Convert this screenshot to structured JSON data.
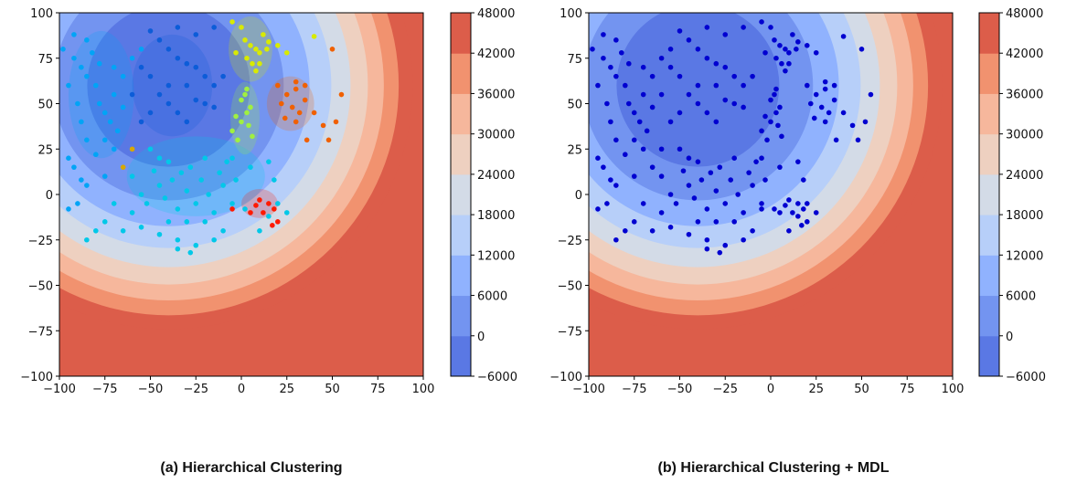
{
  "captions": {
    "a": "(a)  Hierarchical Clustering",
    "b": "(b) Hierarchical Clustering + MDL"
  },
  "chart_data": [
    {
      "type": "scatter",
      "panel": "a",
      "xlim": [
        -100,
        100
      ],
      "ylim": [
        -100,
        100
      ],
      "xticks": [
        -100,
        -75,
        -50,
        -25,
        0,
        25,
        50,
        75,
        100
      ],
      "yticks": [
        -100,
        -75,
        -50,
        -25,
        0,
        25,
        50,
        75,
        100
      ],
      "background": "filled contour of a radial cost surface, minimum near (-40, 60)",
      "colorbar": {
        "levels": [
          -6000,
          0,
          6000,
          12000,
          18000,
          24000,
          30000,
          36000,
          42000,
          48000
        ],
        "colors": [
          "#5a78e4",
          "#7394f0",
          "#90b2fe",
          "#b7cff9",
          "#d3dbe7",
          "#eed0c0",
          "#f6b79c",
          "#f1926f",
          "#dc5d4a"
        ]
      },
      "clusters": [
        {
          "color": "#00c8e8",
          "ellipse": {
            "cx": -25,
            "cy": 10,
            "rx": 38,
            "ry": 22,
            "rot": 0
          },
          "points": [
            [
              -60,
              10
            ],
            [
              -55,
              0
            ],
            [
              -52,
              -5
            ],
            [
              -48,
              13
            ],
            [
              -45,
              5
            ],
            [
              -42,
              -2
            ],
            [
              -40,
              18
            ],
            [
              -38,
              8
            ],
            [
              -35,
              -8
            ],
            [
              -33,
              12
            ],
            [
              -30,
              2
            ],
            [
              -28,
              15
            ],
            [
              -25,
              -5
            ],
            [
              -22,
              8
            ],
            [
              -20,
              20
            ],
            [
              -18,
              0
            ],
            [
              -15,
              -10
            ],
            [
              -12,
              12
            ],
            [
              -10,
              5
            ],
            [
              -8,
              18
            ],
            [
              -5,
              -5
            ],
            [
              -3,
              8
            ],
            [
              -45,
              20
            ],
            [
              -50,
              25
            ],
            [
              -60,
              -10
            ],
            [
              -70,
              -5
            ],
            [
              -75,
              -15
            ],
            [
              -80,
              -20
            ],
            [
              -85,
              -25
            ],
            [
              -65,
              -20
            ],
            [
              -55,
              -18
            ],
            [
              -45,
              -22
            ],
            [
              -35,
              -25
            ],
            [
              -25,
              -28
            ],
            [
              -15,
              -25
            ],
            [
              -40,
              -15
            ],
            [
              -30,
              -15
            ],
            [
              -20,
              -15
            ],
            [
              10,
              -20
            ],
            [
              15,
              -12
            ],
            [
              20,
              -5
            ],
            [
              25,
              -10
            ],
            [
              18,
              8
            ],
            [
              5,
              15
            ],
            [
              15,
              18
            ],
            [
              -5,
              20
            ],
            [
              2,
              -8
            ],
            [
              -10,
              -20
            ],
            [
              -28,
              -32
            ],
            [
              -35,
              -30
            ]
          ]
        },
        {
          "color": "#00a4f6",
          "ellipse": {
            "cx": -77,
            "cy": 55,
            "rx": 18,
            "ry": 35,
            "rot": 0
          },
          "points": [
            [
              -98,
              80
            ],
            [
              -92,
              75
            ],
            [
              -88,
              70
            ],
            [
              -85,
              65
            ],
            [
              -82,
              78
            ],
            [
              -80,
              60
            ],
            [
              -78,
              50
            ],
            [
              -75,
              45
            ],
            [
              -72,
              40
            ],
            [
              -70,
              55
            ],
            [
              -68,
              35
            ],
            [
              -65,
              48
            ],
            [
              -95,
              60
            ],
            [
              -90,
              50
            ],
            [
              -88,
              40
            ],
            [
              -85,
              30
            ],
            [
              -80,
              22
            ],
            [
              -75,
              30
            ],
            [
              -70,
              25
            ],
            [
              -95,
              20
            ],
            [
              -92,
              15
            ],
            [
              -88,
              8
            ],
            [
              -85,
              5
            ],
            [
              -75,
              10
            ],
            [
              -90,
              -5
            ],
            [
              -95,
              -8
            ],
            [
              -65,
              65
            ],
            [
              -70,
              70
            ],
            [
              -60,
              75
            ],
            [
              -55,
              80
            ],
            [
              -78,
              72
            ],
            [
              -85,
              85
            ],
            [
              -92,
              88
            ]
          ]
        },
        {
          "color": "#0c5cd8",
          "ellipse": {
            "cx": -38,
            "cy": 60,
            "rx": 22,
            "ry": 28,
            "rot": 0
          },
          "points": [
            [
              -50,
              90
            ],
            [
              -45,
              85
            ],
            [
              -40,
              80
            ],
            [
              -35,
              75
            ],
            [
              -30,
              72
            ],
            [
              -25,
              70
            ],
            [
              -20,
              65
            ],
            [
              -15,
              60
            ],
            [
              -55,
              70
            ],
            [
              -50,
              65
            ],
            [
              -45,
              55
            ],
            [
              -40,
              50
            ],
            [
              -35,
              45
            ],
            [
              -30,
              40
            ],
            [
              -25,
              52
            ],
            [
              -20,
              50
            ],
            [
              -15,
              48
            ],
            [
              -50,
              45
            ],
            [
              -55,
              40
            ],
            [
              -60,
              55
            ],
            [
              -10,
              65
            ],
            [
              -30,
              60
            ],
            [
              -40,
              60
            ],
            [
              -25,
              88
            ],
            [
              -15,
              92
            ],
            [
              -35,
              92
            ]
          ]
        },
        {
          "color": "#d8ea00",
          "ellipse": {
            "cx": 5,
            "cy": 80,
            "rx": 12,
            "ry": 18,
            "rot": 0
          },
          "points": [
            [
              -5,
              95
            ],
            [
              0,
              92
            ],
            [
              2,
              85
            ],
            [
              5,
              82
            ],
            [
              8,
              80
            ],
            [
              10,
              78
            ],
            [
              3,
              75
            ],
            [
              6,
              72
            ],
            [
              12,
              88
            ],
            [
              15,
              84
            ],
            [
              -3,
              78
            ],
            [
              8,
              68
            ],
            [
              10,
              72
            ],
            [
              20,
              82
            ],
            [
              25,
              78
            ],
            [
              40,
              87
            ],
            [
              14,
              80
            ]
          ]
        },
        {
          "color": "#a0f040",
          "ellipse": {
            "cx": 2,
            "cy": 42,
            "rx": 8,
            "ry": 20,
            "rot": 0
          },
          "points": [
            [
              -5,
              35
            ],
            [
              0,
              40
            ],
            [
              3,
              45
            ],
            [
              5,
              48
            ],
            [
              2,
              55
            ],
            [
              0,
              52
            ],
            [
              -3,
              43
            ],
            [
              4,
              38
            ],
            [
              6,
              32
            ],
            [
              -2,
              30
            ],
            [
              3,
              58
            ]
          ]
        },
        {
          "color": "#f06000",
          "ellipse": {
            "cx": 27,
            "cy": 50,
            "rx": 13,
            "ry": 15,
            "rot": 0
          },
          "points": [
            [
              20,
              60
            ],
            [
              25,
              55
            ],
            [
              30,
              58
            ],
            [
              35,
              52
            ],
            [
              22,
              50
            ],
            [
              28,
              48
            ],
            [
              32,
              45
            ],
            [
              24,
              42
            ],
            [
              30,
              40
            ],
            [
              35,
              60
            ],
            [
              40,
              45
            ],
            [
              45,
              38
            ],
            [
              48,
              30
            ],
            [
              52,
              40
            ],
            [
              55,
              55
            ],
            [
              50,
              80
            ],
            [
              36,
              30
            ],
            [
              30,
              62
            ]
          ]
        },
        {
          "color": "#ff1a00",
          "ellipse": {
            "cx": 10,
            "cy": -5,
            "rx": 10,
            "ry": 8,
            "rot": 0
          },
          "points": [
            [
              10,
              -3
            ],
            [
              15,
              -5
            ],
            [
              12,
              -10
            ],
            [
              8,
              -6
            ],
            [
              18,
              -8
            ],
            [
              20,
              -15
            ],
            [
              17,
              -17
            ],
            [
              5,
              -10
            ],
            [
              -5,
              -8
            ]
          ]
        },
        {
          "color": "#d8a800",
          "points": [
            [
              -60,
              25
            ],
            [
              -65,
              15
            ]
          ]
        }
      ]
    },
    {
      "type": "scatter",
      "panel": "b",
      "xlim": [
        -100,
        100
      ],
      "ylim": [
        -100,
        100
      ],
      "xticks": [
        -100,
        -75,
        -50,
        -25,
        0,
        25,
        50,
        75,
        100
      ],
      "yticks": [
        -100,
        -75,
        -50,
        -25,
        0,
        25,
        50,
        75,
        100
      ],
      "background": "filled contour of a radial cost surface, minimum near (-40, 60)",
      "colorbar": {
        "levels": [
          -6000,
          0,
          6000,
          12000,
          18000,
          24000,
          30000,
          36000,
          42000,
          48000
        ],
        "colors": [
          "#5a78e4",
          "#7394f0",
          "#90b2fe",
          "#b7cff9",
          "#d3dbe7",
          "#eed0c0",
          "#f6b79c",
          "#f1926f",
          "#dc5d4a"
        ]
      },
      "point_color": "#0000d0",
      "points_from_panel": "a"
    }
  ]
}
